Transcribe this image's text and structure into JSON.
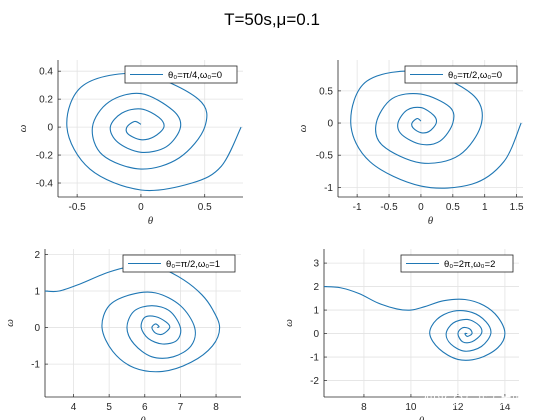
{
  "figure": {
    "title": "T=50s,μ=0.1",
    "watermark": "知乎 @与我无关的忧伤",
    "line_color": "#1f77b4",
    "grid": true
  },
  "chart_data": [
    {
      "type": "line",
      "legend": "θ₀=π/4,ω₀=0",
      "legend_position": "top-right",
      "xlabel": "θ",
      "ylabel": "ω",
      "xlim": [
        -0.65,
        0.8
      ],
      "ylim": [
        -0.5,
        0.48
      ],
      "xticks": [
        -0.5,
        0,
        0.5
      ],
      "xtick_labels": [
        "-0.5",
        "0",
        "0.5"
      ],
      "yticks": [
        -0.4,
        -0.2,
        0,
        0.2,
        0.4
      ],
      "ytick_labels": [
        "-0.4",
        "-0.2",
        "0",
        "0.2",
        "0.4"
      ],
      "series": [
        {
          "x": [
            0.785,
            0.63,
            0.4,
            0.0,
            -0.4,
            -0.58,
            -0.45,
            0.0,
            0.45,
            0.5,
            0.3,
            0.0,
            -0.3,
            -0.38,
            -0.25,
            0.0,
            0.25,
            0.31,
            0.2,
            0.0,
            -0.18,
            -0.24,
            -0.15,
            0.0,
            0.14,
            0.18,
            0.1,
            0.0,
            -0.1,
            -0.11,
            -0.05,
            0.0
          ],
          "y": [
            0.0,
            -0.28,
            -0.4,
            -0.45,
            -0.3,
            0.0,
            0.3,
            0.38,
            0.2,
            0.0,
            -0.22,
            -0.3,
            -0.2,
            0.0,
            0.18,
            0.24,
            0.12,
            0.0,
            -0.14,
            -0.18,
            -0.11,
            0.0,
            0.1,
            0.13,
            0.07,
            0.0,
            -0.07,
            -0.09,
            -0.05,
            0.0,
            0.04,
            0.02
          ]
        }
      ]
    },
    {
      "type": "line",
      "legend": "θ₀=π/2,ω₀=0",
      "legend_position": "top-right",
      "xlabel": "θ",
      "ylabel": "ω",
      "xlim": [
        -1.3,
        1.6
      ],
      "ylim": [
        -1.15,
        0.98
      ],
      "xticks": [
        -1,
        -0.5,
        0,
        0.5,
        1,
        1.5
      ],
      "xtick_labels": [
        "-1",
        "-0.5",
        "0",
        "0.5",
        "1",
        "1.5"
      ],
      "yticks": [
        -1,
        -0.5,
        0,
        0.5
      ],
      "ytick_labels": [
        "-1",
        "-0.5",
        "0",
        "0.5"
      ],
      "series": [
        {
          "x": [
            1.571,
            1.3,
            0.8,
            0.0,
            -0.8,
            -1.1,
            -0.85,
            0.0,
            0.8,
            0.95,
            0.6,
            0.0,
            -0.6,
            -0.7,
            -0.45,
            0.0,
            0.45,
            0.5,
            0.3,
            0.0,
            -0.3,
            -0.36,
            -0.22,
            0.0,
            0.2,
            0.24,
            0.13,
            0.0,
            -0.12,
            -0.14,
            -0.06,
            0.0
          ],
          "y": [
            0.0,
            -0.6,
            -0.95,
            -0.98,
            -0.6,
            0.0,
            0.65,
            0.8,
            0.45,
            0.0,
            -0.5,
            -0.62,
            -0.35,
            0.0,
            0.38,
            0.45,
            0.25,
            0.0,
            -0.28,
            -0.33,
            -0.18,
            0.0,
            0.2,
            0.24,
            0.12,
            0.0,
            -0.13,
            -0.15,
            -0.08,
            0.0,
            0.07,
            0.03
          ]
        }
      ]
    },
    {
      "type": "line",
      "legend": "θ₀=π/2,ω₀=1",
      "legend_position": "top-right",
      "xlabel": "θ",
      "ylabel": "ω",
      "xlim": [
        3.2,
        8.7
      ],
      "ylim": [
        -1.9,
        2.15
      ],
      "xticks": [
        4,
        5,
        6,
        7,
        8
      ],
      "xtick_labels": [
        "4",
        "5",
        "6",
        "7",
        "8"
      ],
      "yticks": [
        -1,
        0,
        1,
        2
      ],
      "ytick_labels": [
        "-1",
        "0",
        "1",
        "2"
      ],
      "series": [
        {
          "x": [
            3.2,
            3.6,
            4.2,
            5.0,
            5.8,
            6.5,
            7.1,
            7.6,
            7.9,
            8.1,
            7.9,
            7.3,
            6.5,
            5.7,
            5.1,
            4.8,
            5.0,
            5.6,
            6.3,
            7.0,
            7.4,
            7.3,
            6.8,
            6.2,
            5.7,
            5.5,
            5.7,
            6.2,
            6.7,
            7.0,
            6.9,
            6.5,
            6.1,
            5.9,
            6.0,
            6.3,
            6.6,
            6.7,
            6.5,
            6.3,
            6.2,
            6.3,
            6.4,
            6.35
          ],
          "y": [
            1.0,
            1.0,
            1.2,
            1.52,
            1.7,
            1.6,
            1.3,
            0.9,
            0.5,
            0.0,
            -0.5,
            -0.95,
            -1.2,
            -1.1,
            -0.65,
            0.0,
            0.6,
            0.9,
            0.95,
            0.6,
            0.0,
            -0.5,
            -0.8,
            -0.8,
            -0.45,
            0.0,
            0.45,
            0.6,
            0.45,
            0.0,
            -0.35,
            -0.45,
            -0.3,
            0.0,
            0.28,
            0.3,
            0.15,
            0.0,
            -0.18,
            -0.15,
            0.0,
            0.1,
            0.03,
            0.0
          ]
        }
      ]
    },
    {
      "type": "line",
      "legend": "θ₀=2π,ω₀=2",
      "legend_position": "top-right",
      "xlabel": "θ",
      "ylabel": "ω",
      "xlim": [
        6.3,
        14.6
      ],
      "ylim": [
        -2.7,
        3.6
      ],
      "xticks": [
        8,
        10,
        12,
        14
      ],
      "xtick_labels": [
        "8",
        "10",
        "12",
        "14"
      ],
      "yticks": [
        -2,
        -1,
        0,
        1,
        2,
        3
      ],
      "ytick_labels": [
        "-2",
        "-1",
        "0",
        "1",
        "2",
        "3"
      ],
      "series": [
        {
          "x": [
            6.3,
            7.0,
            7.8,
            8.6,
            9.4,
            10.0,
            10.6,
            11.4,
            12.3,
            13.1,
            13.7,
            14.0,
            13.7,
            12.9,
            12.0,
            11.2,
            10.8,
            11.1,
            11.8,
            12.6,
            13.2,
            13.4,
            13.0,
            12.3,
            11.7,
            11.5,
            11.8,
            12.4,
            12.9,
            13.0,
            12.6,
            12.2,
            12.0,
            12.2,
            12.5,
            12.6,
            12.4,
            12.3,
            12.4
          ],
          "y": [
            2.0,
            1.95,
            1.7,
            1.3,
            1.05,
            1.0,
            1.15,
            1.4,
            1.45,
            1.2,
            0.7,
            0.0,
            -0.6,
            -1.05,
            -1.1,
            -0.65,
            0.0,
            0.6,
            0.95,
            0.9,
            0.5,
            0.0,
            -0.55,
            -0.75,
            -0.45,
            0.0,
            0.45,
            0.6,
            0.35,
            0.0,
            -0.35,
            -0.35,
            0.0,
            0.25,
            0.2,
            0.0,
            -0.12,
            0.0,
            0.0
          ]
        }
      ]
    }
  ]
}
